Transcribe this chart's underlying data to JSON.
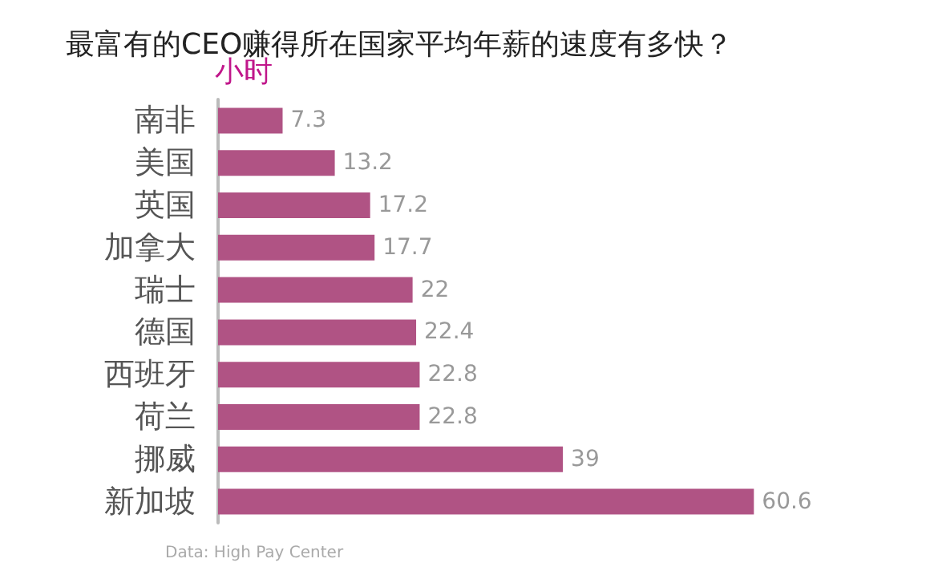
{
  "chart_data": {
    "type": "bar",
    "orientation": "horizontal",
    "title": "最富有的CEO赚得所在国家平均年薪的速度有多快？",
    "xlabel": "小时",
    "categories": [
      "南非",
      "美国",
      "英国",
      "加拿大",
      "瑞士",
      "德国",
      "西班牙",
      "荷兰",
      "挪威",
      "新加坡"
    ],
    "values": [
      7.3,
      13.2,
      17.2,
      17.7,
      22,
      22.4,
      22.8,
      22.8,
      39,
      60.6
    ],
    "color": "#b05384",
    "data_labels": true,
    "annotations": [
      "Data: High Pay Center"
    ]
  }
}
